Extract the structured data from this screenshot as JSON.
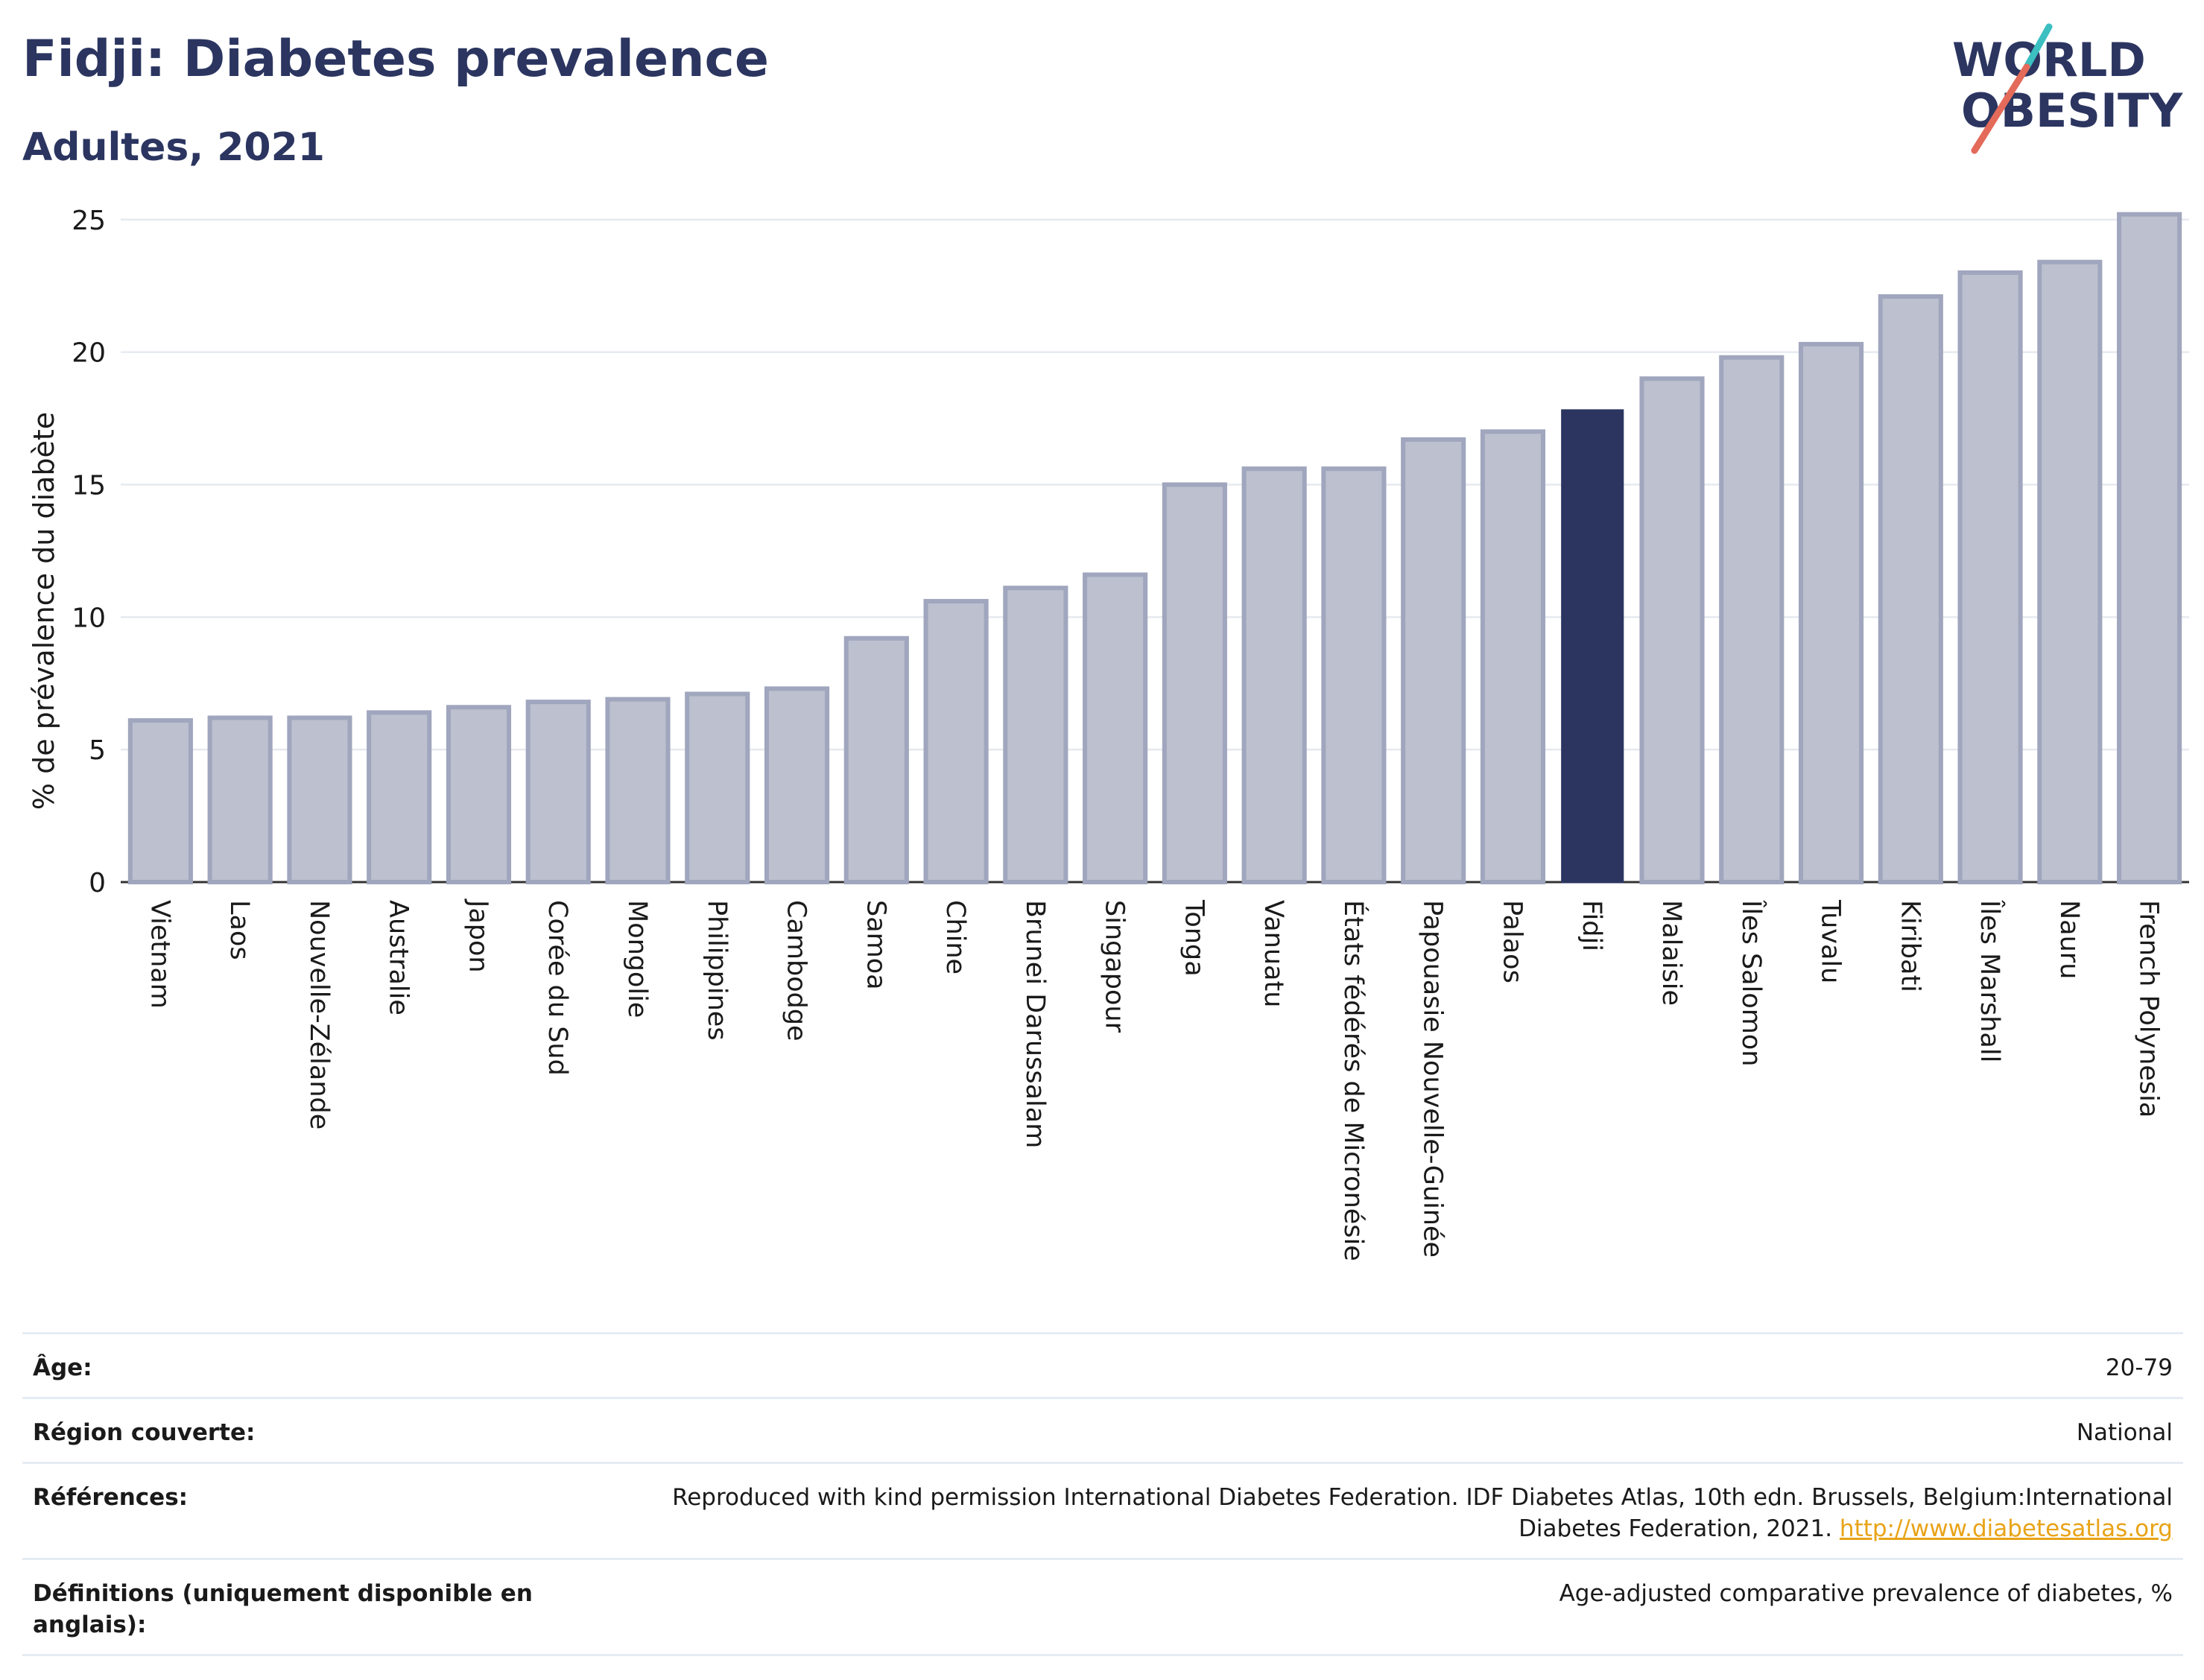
{
  "header": {
    "title": "Fidji: Diabetes prevalence",
    "subtitle": "Adultes, 2021"
  },
  "logo": {
    "line1": "WORLD",
    "line2": "OBESITY",
    "colors": {
      "text": "#2b3560",
      "slash_teal": "#3bbfc0",
      "slash_coral": "#e46a5a"
    }
  },
  "chart_data": {
    "type": "bar",
    "ylabel": "% de prévalence du diabète",
    "xlabel": "",
    "ylim": [
      0,
      25.5
    ],
    "yticks": [
      0,
      5,
      10,
      15,
      20,
      25
    ],
    "grid": true,
    "highlight": "Fidji",
    "colors": {
      "bar": "#bcc0cf",
      "bar_edge": "#a0a6bd",
      "highlight": "#2b3560"
    },
    "categories": [
      "Vietnam",
      "Laos",
      "Nouvelle-Zélande",
      "Australie",
      "Japon",
      "Corée du Sud",
      "Mongolie",
      "Philippines",
      "Cambodge",
      "Samoa",
      "Chine",
      "Brunei Darussalam",
      "Singapour",
      "Tonga",
      "Vanuatu",
      "États fédérés de Micronésie",
      "Papouasie Nouvelle-Guinée",
      "Palaos",
      "Fidji",
      "Malaisie",
      "Îles Salomon",
      "Tuvalu",
      "Kiribati",
      "Îles Marshall",
      "Nauru",
      "French Polynesia"
    ],
    "values": [
      6.1,
      6.2,
      6.2,
      6.4,
      6.6,
      6.8,
      6.9,
      7.1,
      7.3,
      9.2,
      10.6,
      11.1,
      11.6,
      15.0,
      15.6,
      15.6,
      16.7,
      17.0,
      17.8,
      19.0,
      19.8,
      20.3,
      22.1,
      23.0,
      23.4,
      25.2
    ]
  },
  "meta": {
    "age_label": "Âge:",
    "age_value": "20-79",
    "region_label": "Région couverte:",
    "region_value": "National",
    "references_label": "Références:",
    "references_text": "Reproduced with kind permission International Diabetes Federation.  IDF Diabetes Atlas, 10th edn. Brussels, Belgium:International Diabetes Federation, 2021.",
    "references_link": "http://www.diabetesatlas.org",
    "definitions_label": "Définitions (uniquement disponible en anglais):",
    "definitions_value": "Age-adjusted comparative prevalence of diabetes, %"
  }
}
